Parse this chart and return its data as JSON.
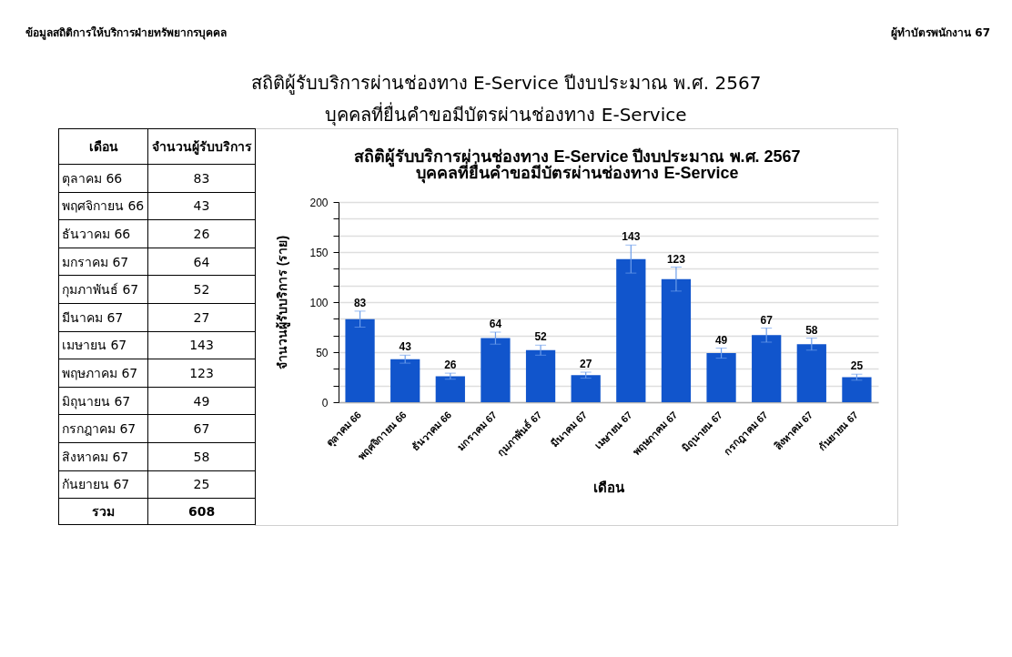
{
  "chart_data": [
    {
      "type": "bar",
      "title": "สถิติผู้รับบริการผ่านช่องทาง E-Service ปีงบประมาณ พ.ศ. 2567",
      "subtitle": "บุคคลที่ยื่นคำขอมีบัตรผ่านช่องทาง E-Service",
      "xlabel": "เดือน",
      "ylabel": "จำนวนผู้รับบริการ (ราย)",
      "categories": [
        "ตุลาคม 66",
        "พฤศจิกายน 66",
        "ธันวาคม 66",
        "มกราคม 67",
        "กุมภาพันธ์ 67",
        "มีนาคม 67",
        "เมษายน 67",
        "พฤษภาคม 67",
        "มิถุนายน 67",
        "กรกฎาคม 67",
        "สิงหาคม 67",
        "กันยายน 67"
      ],
      "values": [
        83,
        43,
        26,
        64,
        52,
        27,
        143,
        123,
        49,
        67,
        58,
        25
      ],
      "errors": [
        8,
        4,
        3,
        6,
        5,
        3,
        14,
        12,
        5,
        7,
        6,
        3
      ],
      "color": "#1155cc",
      "ylim": [
        0,
        200
      ],
      "yticks": [
        0,
        {
          "value": 16.67,
          "label": null
        },
        {
          "value": 33.33,
          "label": null
        },
        50,
        {
          "value": 66.67,
          "label": null
        },
        {
          "value": 83.33,
          "label": null
        },
        100,
        {
          "value": 116.67,
          "label": null
        },
        {
          "value": 133.33,
          "label": null
        },
        150,
        {
          "value": 166.67,
          "label": null
        },
        {
          "value": 183.33,
          "label": null
        },
        200
      ],
      "grid": "y",
      "data_labels": true,
      "annotations": [
        "ข้อมูลสถิติการให้บริการฝ่ายทรัพยากรบุคคล",
        "ผู้ทำบัตรพนักงาน 67"
      ]
    },
    {
      "type": "other",
      "xlabel": "เดือน",
      "ylabel": "จำนวนผู้รับบริการ",
      "categories": [
        "ตุลาคม 66",
        "พฤศจิกายน 66",
        "ธันวาคม 66",
        "มกราคม 67",
        "กุมภาพันธ์ 67",
        "มีนาคม 67",
        "เมษายน 67",
        "พฤษภาคม 67",
        "มิถุนายน 67",
        "กรกฎาคม 67",
        "สิงหาคม 67",
        "กันยายน 67"
      ],
      "values": [
        83,
        43,
        26,
        64,
        52,
        27,
        143,
        123,
        49,
        67,
        58,
        25
      ],
      "data_labels": true,
      "annotations": [
        "รวม",
        "608"
      ]
    }
  ]
}
